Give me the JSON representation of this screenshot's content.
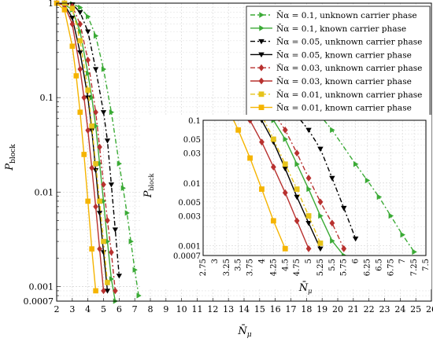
{
  "chart_data": {
    "type": "line",
    "xlabel": "N̄μ",
    "ylabel": "Pblock",
    "ylabel_main": "P",
    "ylabel_sub": "block",
    "xlabel_main": "N̄",
    "xlabel_sub": "μ",
    "xlim": [
      2,
      26
    ],
    "ylim": [
      0.0007,
      1
    ],
    "yscale": "log",
    "grid": true,
    "legend_position": "top-right",
    "x_ticks": [
      "2",
      "3",
      "4",
      "5",
      "6",
      "7",
      "8",
      "9",
      "10",
      "11",
      "12",
      "13",
      "14",
      "15",
      "16",
      "17",
      "18",
      "19",
      "20",
      "21",
      "22",
      "23",
      "24",
      "25",
      "26"
    ],
    "y_ticks": [
      {
        "value": 1,
        "label": "1"
      },
      {
        "value": 0.1,
        "label": "0.1"
      },
      {
        "value": 0.01,
        "label": "0.01"
      },
      {
        "value": 0.001,
        "label": "0.001"
      },
      {
        "value": 0.0007,
        "label": "0.0007"
      }
    ],
    "inset": {
      "xlabel": "N̄μ",
      "ylabel": "Pblock",
      "xlim": [
        2.75,
        7.5
      ],
      "ylim": [
        0.0007,
        0.1
      ],
      "x_ticks": [
        "2.75",
        "3",
        "3.25",
        "3.5",
        "3.75",
        "4",
        "4.25",
        "4.5",
        "4.75",
        "5",
        "5.25",
        "5.5",
        "5.75",
        "6",
        "6.25",
        "6.5",
        "6.75",
        "7",
        "7.25",
        "7.5"
      ],
      "y_ticks": [
        {
          "value": 0.1,
          "label": "0.1"
        },
        {
          "value": 0.05,
          "label": "0.05"
        },
        {
          "value": 0.03,
          "label": "0.03"
        },
        {
          "value": 0.01,
          "label": "0.01"
        },
        {
          "value": 0.005,
          "label": "0.005"
        },
        {
          "value": 0.003,
          "label": "0.003"
        },
        {
          "value": 0.001,
          "label": "0.001"
        },
        {
          "value": 0.0007,
          "label": "0.0007"
        }
      ]
    },
    "series": [
      {
        "name": "N̄α = 0.1, unknown carrier phase",
        "color": "#3aaa35",
        "dash": "6,3,2,3",
        "marker": "tri-right",
        "x": [
          2.5,
          3.0,
          3.5,
          4.0,
          4.5,
          5.0,
          5.5,
          6.0,
          6.25,
          6.5,
          6.75,
          7.0,
          7.25
        ],
        "y": [
          1.0,
          0.98,
          0.9,
          0.72,
          0.45,
          0.2,
          0.07,
          0.02,
          0.011,
          0.006,
          0.003,
          0.0015,
          0.0008
        ]
      },
      {
        "name": "N̄α = 0.1, known carrier phase",
        "color": "#3aaa35",
        "dash": "",
        "marker": "tri-right",
        "x": [
          2.0,
          2.5,
          3.0,
          3.5,
          4.0,
          4.25,
          4.5,
          4.75,
          5.0,
          5.25,
          5.5,
          5.75
        ],
        "y": [
          1.0,
          0.97,
          0.85,
          0.5,
          0.18,
          0.1,
          0.05,
          0.02,
          0.008,
          0.003,
          0.0012,
          0.0007
        ]
      },
      {
        "name": "N̄α = 0.05, unknown carrier phase",
        "color": "#000000",
        "dash": "6,3,2,3",
        "marker": "tri-down",
        "x": [
          2.5,
          3.0,
          3.5,
          4.0,
          4.5,
          5.0,
          5.25,
          5.5,
          5.75,
          6.0
        ],
        "y": [
          1.0,
          0.97,
          0.8,
          0.5,
          0.2,
          0.07,
          0.035,
          0.012,
          0.004,
          0.0013
        ]
      },
      {
        "name": "N̄α = 0.05, known carrier phase",
        "color": "#000000",
        "dash": "",
        "marker": "tri-down",
        "x": [
          2.0,
          2.5,
          3.0,
          3.5,
          4.0,
          4.25,
          4.5,
          4.75,
          5.0,
          5.25
        ],
        "y": [
          1.0,
          0.96,
          0.7,
          0.3,
          0.1,
          0.045,
          0.017,
          0.006,
          0.0023,
          0.0009
        ]
      },
      {
        "name": "N̄α = 0.03, unknown carrier phase",
        "color": "#b8312f",
        "dash": "6,3,2,3",
        "marker": "diamond",
        "x": [
          2.5,
          3.0,
          3.5,
          4.0,
          4.5,
          4.75,
          5.0,
          5.25,
          5.5,
          5.75
        ],
        "y": [
          1.0,
          0.93,
          0.6,
          0.25,
          0.07,
          0.03,
          0.012,
          0.005,
          0.0023,
          0.0009
        ]
      },
      {
        "name": "N̄α = 0.03, known carrier phase",
        "color": "#b8312f",
        "dash": "",
        "marker": "diamond",
        "x": [
          2.0,
          2.5,
          3.0,
          3.5,
          3.75,
          4.0,
          4.25,
          4.5,
          4.75,
          5.0
        ],
        "y": [
          1.0,
          0.95,
          0.6,
          0.2,
          0.1,
          0.045,
          0.018,
          0.007,
          0.0025,
          0.0009
        ]
      },
      {
        "name": "N̄α = 0.01, unknown carrier phase",
        "color": "#e6c31a",
        "dash": "6,3,2,3",
        "marker": "square",
        "x": [
          2.5,
          3.0,
          3.5,
          4.0,
          4.25,
          4.5,
          4.75,
          5.0,
          5.25
        ],
        "y": [
          1.0,
          0.88,
          0.4,
          0.12,
          0.05,
          0.02,
          0.008,
          0.003,
          0.0011
        ]
      },
      {
        "name": "N̄α = 0.01, known carrier phase",
        "color": "#f5b400",
        "dash": "",
        "marker": "square",
        "x": [
          2.0,
          2.5,
          3.0,
          3.25,
          3.5,
          3.75,
          4.0,
          4.25,
          4.5
        ],
        "y": [
          1.0,
          0.85,
          0.35,
          0.17,
          0.07,
          0.025,
          0.008,
          0.0025,
          0.0009
        ]
      }
    ]
  }
}
